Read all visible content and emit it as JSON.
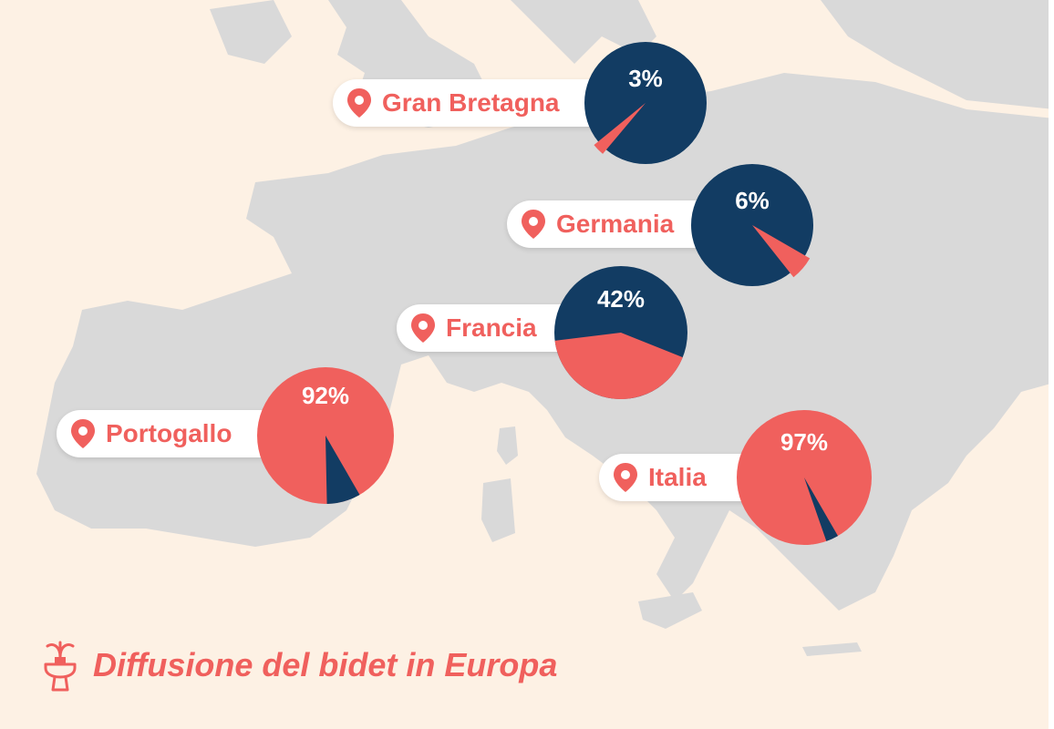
{
  "title": "Diffusione del bidet in Europa",
  "colors": {
    "background": "#fdf1e4",
    "land": "#d9d9d9",
    "with_bidet": "#f0605d",
    "without_bidet": "#123c63",
    "label_text": "#f0605d"
  },
  "icons": {
    "location": "map-pin-icon",
    "title": "bidet-icon"
  },
  "chart_data": {
    "type": "pie",
    "title": "Diffusione del bidet in Europa",
    "countries": [
      {
        "label": "Gran Bretagna",
        "value": 3,
        "value_label": "3%"
      },
      {
        "label": "Germania",
        "value": 6,
        "value_label": "6%"
      },
      {
        "label": "Francia",
        "value": 42,
        "value_label": "42%"
      },
      {
        "label": "Portogallo",
        "value": 92,
        "value_label": "92%"
      },
      {
        "label": "Italia",
        "value": 97,
        "value_label": "97%"
      }
    ]
  }
}
